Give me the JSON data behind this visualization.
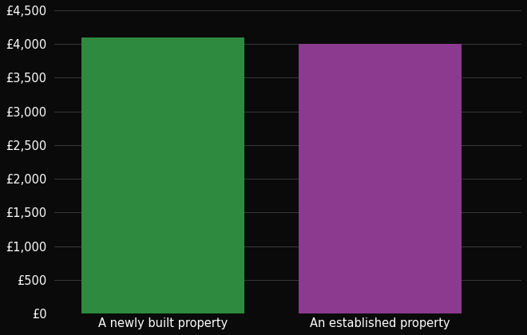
{
  "categories": [
    "A newly built property",
    "An established property"
  ],
  "values": [
    4100,
    4000
  ],
  "bar_colors": [
    "#2d8a3e",
    "#8b3a8f"
  ],
  "background_color": "#0a0a0a",
  "text_color": "#ffffff",
  "grid_color": "#3a3a3a",
  "ylim": [
    0,
    4500
  ],
  "ytick_step": 500,
  "tick_label_fontsize": 10.5,
  "xlabel_fontsize": 10.5
}
